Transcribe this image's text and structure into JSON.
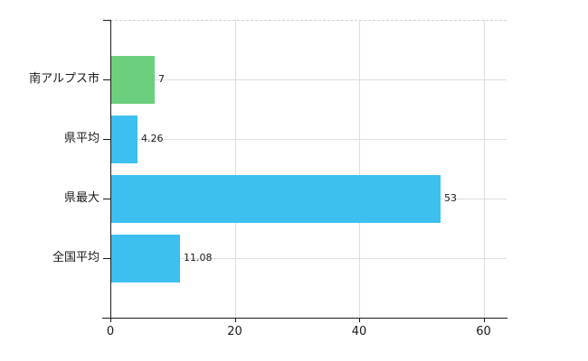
{
  "chart_data": {
    "type": "bar",
    "orientation": "horizontal",
    "title": "",
    "xlabel": "",
    "ylabel": "",
    "categories": [
      "南アルプス市",
      "県平均",
      "県最大",
      "全国平均"
    ],
    "values": [
      7,
      4.26,
      53,
      11.08
    ],
    "value_labels": [
      "7",
      "4.26",
      "53",
      "11.08"
    ],
    "bar_colors": [
      "#6ccf7e",
      "#3dc0f0",
      "#3dc0f0",
      "#3dc0f0"
    ],
    "x_ticks": [
      0,
      20,
      40,
      60
    ],
    "x_tick_labels": [
      "0",
      "20",
      "40",
      "60"
    ],
    "xlim": [
      0,
      63.7
    ],
    "grid": true,
    "legend": false
  },
  "colors": {
    "highlight_bar": "#6ccf7e",
    "default_bar": "#3dc0f0",
    "axis": "#1a1a1a",
    "gridline": "#dcdedc",
    "top_border": "#cfd4cf",
    "text": "#1a1a1a",
    "background": "#ffffff"
  }
}
